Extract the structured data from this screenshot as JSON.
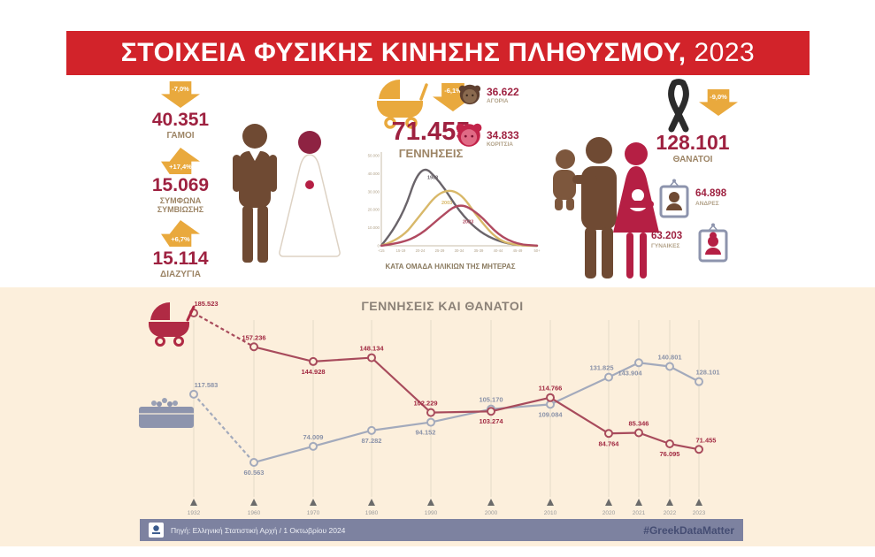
{
  "title_main": "ΣΤΟΙΧΕΙΑ ΦΥΣΙΚΗΣ ΚΙΝΗΣΗΣ ΠΛΗΘΥΣΜΟΥ,",
  "title_year": "2023",
  "colors": {
    "banner_red": "#d2232a",
    "number_crimson": "#9e2140",
    "label_brown": "#9d8566",
    "arrow_gold": "#e9a93d",
    "pictogram_brown": "#6f4a33",
    "pictogram_crimson": "#b51f44",
    "births_line": "#a84b5c",
    "deaths_line": "#a3aabc",
    "cream_bg": "#fcefdc",
    "footer_bar": "#7d82a0"
  },
  "marriages": {
    "value": "40.351",
    "label": "ΓΑΜΟΙ",
    "change": "-7,0%",
    "direction": "down"
  },
  "partnerships": {
    "value": "15.069",
    "label": "ΣΥΜΦΩΝΑ ΣΥΜΒΙΩΣΗΣ",
    "change": "+17,4%",
    "direction": "up"
  },
  "divorces": {
    "value": "15.114",
    "label": "ΔΙΑΖΥΓΙΑ",
    "change": "+6,7%",
    "direction": "up"
  },
  "births": {
    "value": "71.455",
    "label": "ΓΕΝΝΗΣΕΙΣ",
    "change": "-6,1%",
    "direction": "down",
    "boys": {
      "value": "36.622",
      "label": "ΑΓΟΡΙΑ"
    },
    "girls": {
      "value": "34.833",
      "label": "ΚΟΡΙΤΣΙΑ"
    }
  },
  "deaths": {
    "value": "128.101",
    "label": "ΘΑΝΑΤΟΙ",
    "change": "-9,0%",
    "direction": "down",
    "men": {
      "value": "64.898",
      "label": "ΑΝΔΡΕΣ"
    },
    "women": {
      "value": "63.203",
      "label": "ΓΥΝΑΙΚΕΣ"
    }
  },
  "chart_data": [
    {
      "type": "line",
      "title": "ΚΑΤΑ ΟΜΑΔΑ ΗΛΙΚΙΩΝ ΤΗΣ ΜΗΤΕΡΑΣ",
      "categories": [
        "<15",
        "15-19",
        "20-24",
        "25-29",
        "30-34",
        "35-39",
        "40-44",
        "45-49",
        "50+"
      ],
      "ylim": [
        0,
        50000
      ],
      "yticks": [
        "0",
        "10.000",
        "20.000",
        "30.000",
        "40.000",
        "50.000"
      ],
      "legend_position": "inline",
      "series": [
        {
          "name": "1983",
          "color": "#6a646a",
          "values": [
            200,
            13000,
            46000,
            36000,
            19000,
            8000,
            2500,
            300,
            0
          ]
        },
        {
          "name": "2003",
          "color": "#d8b869",
          "values": [
            100,
            3500,
            17000,
            30500,
            30500,
            15000,
            3000,
            200,
            0
          ]
        },
        {
          "name": "2023",
          "color": "#b04a60",
          "values": [
            50,
            1500,
            6000,
            15500,
            24000,
            18000,
            6000,
            800,
            100
          ]
        }
      ]
    },
    {
      "type": "line",
      "title": "ΓΕΝΝΗΣΕΙΣ ΚΑΙ ΘΑΝΑΤΟΙ",
      "x": [
        "1932",
        "1960",
        "1970",
        "1980",
        "1990",
        "2000",
        "2010",
        "2020",
        "2021",
        "2022",
        "2023"
      ],
      "ylim": [
        55000,
        195000
      ],
      "grid": "vertical",
      "legend_position": "none",
      "series": [
        {
          "name": "ΓΕΝΝΗΣΕΙΣ",
          "color": "#a84b5c",
          "label_color": "#a12a42",
          "values": [
            185523,
            157236,
            144928,
            148134,
            102229,
            103274,
            114766,
            84764,
            85346,
            76095,
            71455
          ],
          "labels": [
            "185.523",
            "157.236",
            "144.928",
            "148.134",
            "102.229",
            "103.274",
            "114.766",
            "84.764",
            "85.346",
            "76.095",
            "71.455"
          ]
        },
        {
          "name": "ΘΑΝΑΤΟΙ",
          "color": "#a3aabc",
          "label_color": "#8a92a8",
          "values": [
            117583,
            60563,
            74009,
            87282,
            94152,
            105170,
            109084,
            131825,
            143904,
            140801,
            128101
          ],
          "labels": [
            "117.583",
            "60.563",
            "74.009",
            "87.282",
            "94.152",
            "105.170",
            "109.084",
            "131.825",
            "143.904",
            "140.801",
            "128.101"
          ]
        }
      ],
      "note": "first segment 1932-1960 drawn dashed"
    }
  ],
  "footer": {
    "source": "Πηγή: Ελληνική Στατιστική Αρχή / 1 Οκτωβρίου 2024",
    "hashtag": "#GreekDataMatter"
  }
}
